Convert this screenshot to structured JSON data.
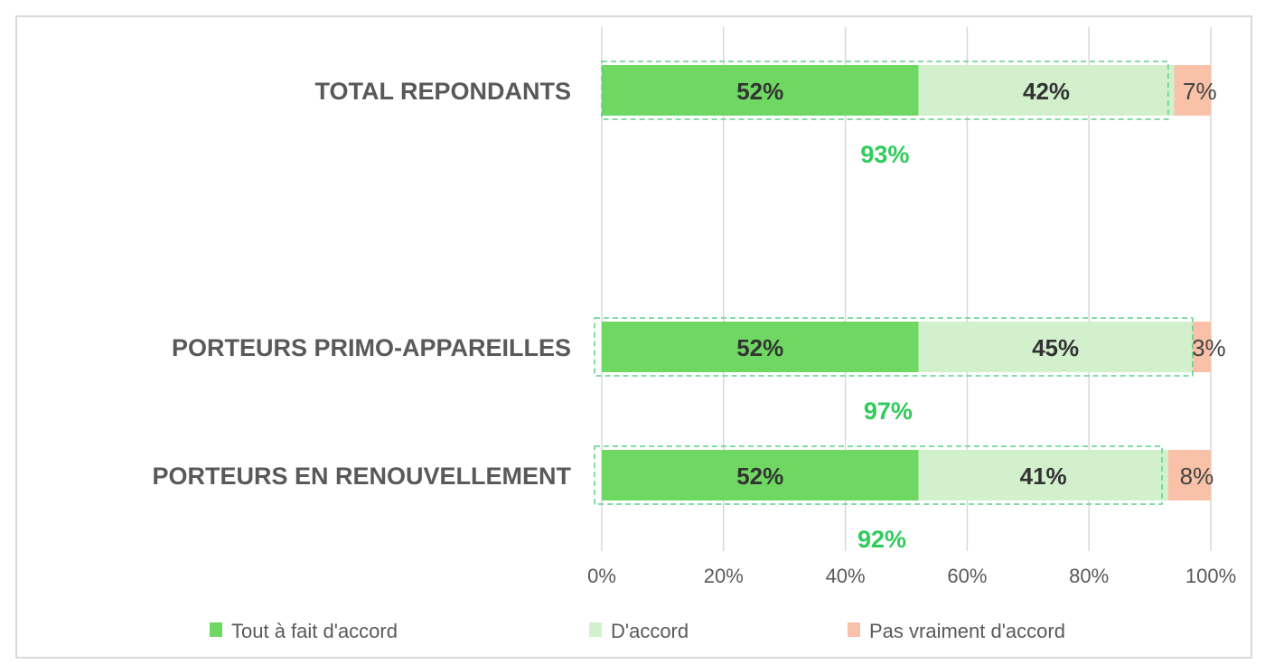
{
  "chart_data": {
    "type": "bar",
    "orientation": "horizontal",
    "stacked": true,
    "categories": [
      "TOTAL REPONDANTS",
      "PORTEURS PRIMO-APPAREILLES",
      "PORTEURS EN RENOUVELLEMENT"
    ],
    "series": [
      {
        "name": "Tout à fait d'accord",
        "color": "#6fd862",
        "values": [
          52,
          52,
          52
        ],
        "labels": [
          "52%",
          "52%",
          "52%"
        ]
      },
      {
        "name": "D'accord",
        "color": "#d3f0cd",
        "values": [
          42,
          45,
          41
        ],
        "labels": [
          "42%",
          "45%",
          "41%"
        ]
      },
      {
        "name": "Pas vraiment d'accord",
        "color": "#f8c1a8",
        "values": [
          7,
          3,
          8
        ],
        "labels": [
          "7%",
          "3%",
          "8%"
        ]
      }
    ],
    "totals": {
      "values": [
        93,
        97,
        92
      ],
      "labels": [
        "93%",
        "97%",
        "92%"
      ],
      "color": "#2ecc5a"
    },
    "xlim": [
      0,
      100
    ],
    "xticks": [
      "0%",
      "20%",
      "40%",
      "60%",
      "80%",
      "100%"
    ],
    "grid": true,
    "legend": "bottom"
  }
}
